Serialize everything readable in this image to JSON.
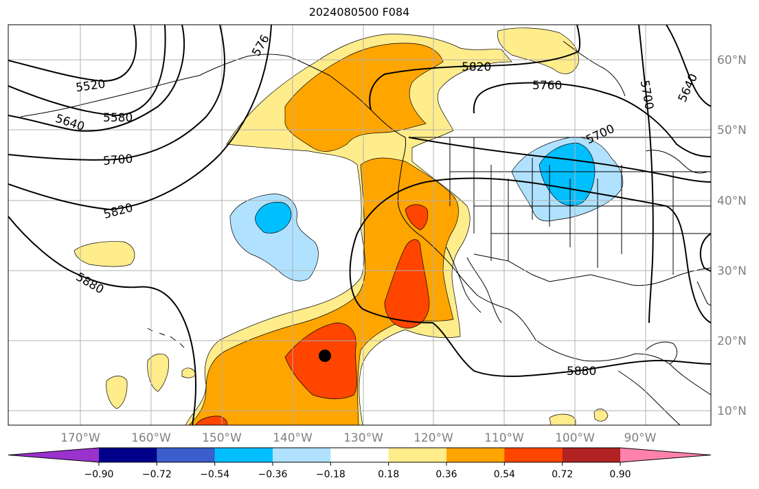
{
  "title": "2024080500 F084",
  "lon_labels": [
    "170°W",
    "160°W",
    "150°W",
    "140°W",
    "130°W",
    "120°W",
    "110°W",
    "100°W",
    "90°W"
  ],
  "lat_labels": [
    "60°N",
    "50°N",
    "40°N",
    "30°N",
    "20°N",
    "10°N"
  ],
  "contour_labels": [
    "5520",
    "5580",
    "5640",
    "5700",
    "5820",
    "5880",
    "576",
    "5820",
    "5760",
    "5700",
    "5640",
    "5700",
    "5880"
  ],
  "colorbar": {
    "ticks": [
      "−0.90",
      "−0.72",
      "−0.54",
      "−0.36",
      "−0.18",
      "0.18",
      "0.36",
      "0.54",
      "0.72",
      "0.90"
    ],
    "colors": [
      "#9a32cd",
      "#00008b",
      "#3a5fcd",
      "#00bfff",
      "#b0e2ff",
      "#ffffff",
      "#ffec8b",
      "#ffa500",
      "#ff4500",
      "#b22222",
      "#ff82ab"
    ]
  },
  "marker": "storm-center-dot"
}
